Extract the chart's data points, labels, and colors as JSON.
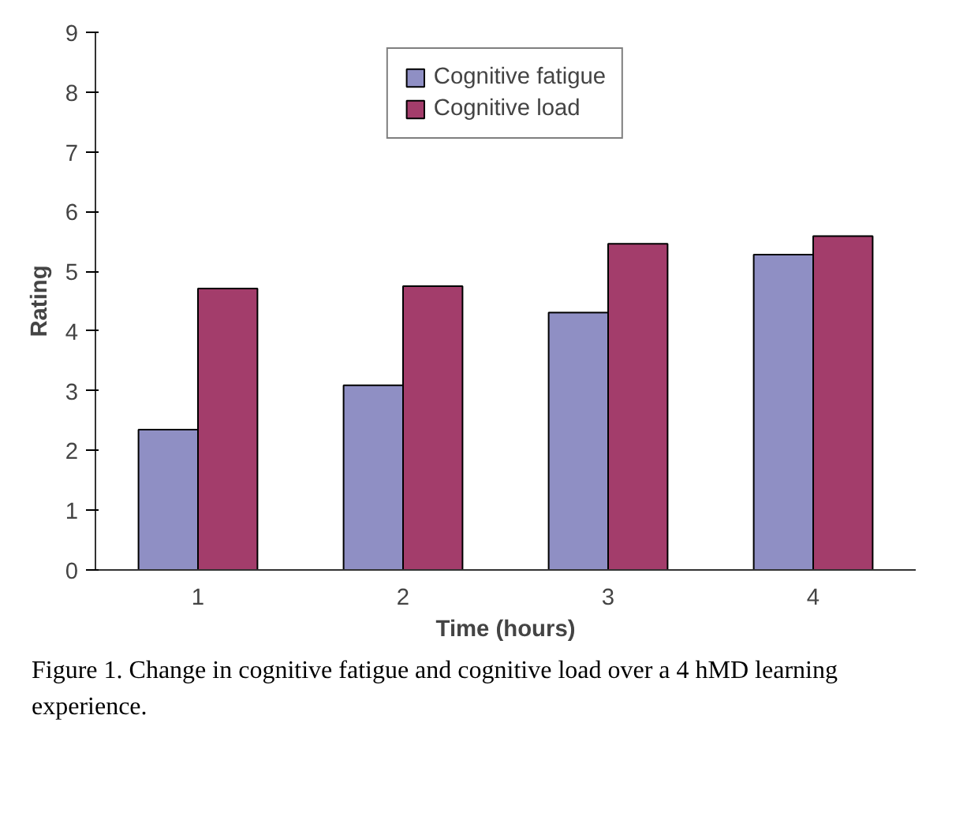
{
  "chart_data": {
    "type": "bar",
    "xlabel": "Time (hours)",
    "ylabel": "Rating",
    "categories": [
      "1",
      "2",
      "3",
      "4"
    ],
    "series": [
      {
        "name": "Cognitive fatigue",
        "color": "#8f8fc4",
        "values": [
          2.35,
          3.09,
          4.31,
          5.28
        ]
      },
      {
        "name": "Cognitive load",
        "color": "#a33d6b",
        "values": [
          4.71,
          4.75,
          5.46,
          5.59
        ]
      }
    ],
    "ylim": [
      0,
      9
    ],
    "yticks": [
      0,
      1,
      2,
      3,
      4,
      5,
      6,
      7,
      8,
      9
    ],
    "grid": false,
    "legend": "top",
    "annotations": [
      "Figure 1. Change in cognitive fatigue and cognitive load over a 4 hMD learning experience."
    ]
  }
}
